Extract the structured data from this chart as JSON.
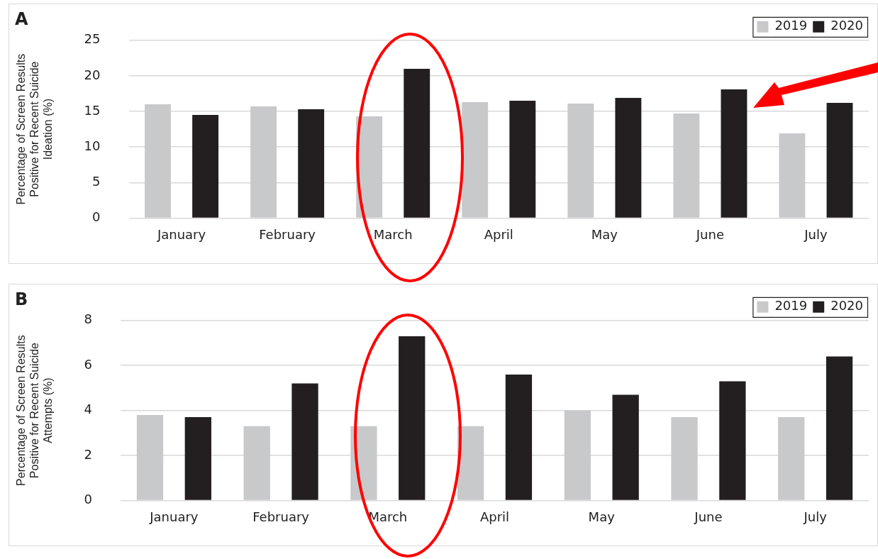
{
  "chart_data": [
    {
      "type": "bar",
      "title": "A",
      "ylabel": "Percentage of Screen Results Positive for Recent Suicide Ideation (%)",
      "categories": [
        "January",
        "February",
        "March",
        "April",
        "May",
        "June",
        "July"
      ],
      "series": [
        {
          "name": "2019",
          "color": "#c8c9cb",
          "values": [
            16.0,
            15.7,
            14.3,
            16.3,
            16.1,
            14.7,
            11.9
          ]
        },
        {
          "name": "2020",
          "color": "#231f20",
          "values": [
            14.5,
            15.3,
            21.0,
            16.5,
            16.9,
            18.1,
            16.2
          ]
        }
      ],
      "ylim": [
        0,
        25
      ],
      "yticks": [
        0,
        5,
        10,
        15,
        20,
        25
      ],
      "grid": "y",
      "legend": "top right"
    },
    {
      "type": "bar",
      "title": "B",
      "ylabel": "Percentage of Screen Results Positive for Recent Suicide Attempts (%)",
      "categories": [
        "January",
        "February",
        "March",
        "April",
        "May",
        "June",
        "July"
      ],
      "series": [
        {
          "name": "2019",
          "color": "#c8c9cb",
          "values": [
            3.8,
            3.3,
            3.3,
            3.3,
            4.0,
            3.7,
            3.7
          ]
        },
        {
          "name": "2020",
          "color": "#231f20",
          "values": [
            3.7,
            5.2,
            7.3,
            5.6,
            4.7,
            5.3,
            6.4
          ]
        }
      ],
      "ylim": [
        0,
        8
      ],
      "yticks": [
        0,
        2,
        4,
        6,
        8
      ],
      "grid": "y",
      "legend": "top right"
    }
  ]
}
